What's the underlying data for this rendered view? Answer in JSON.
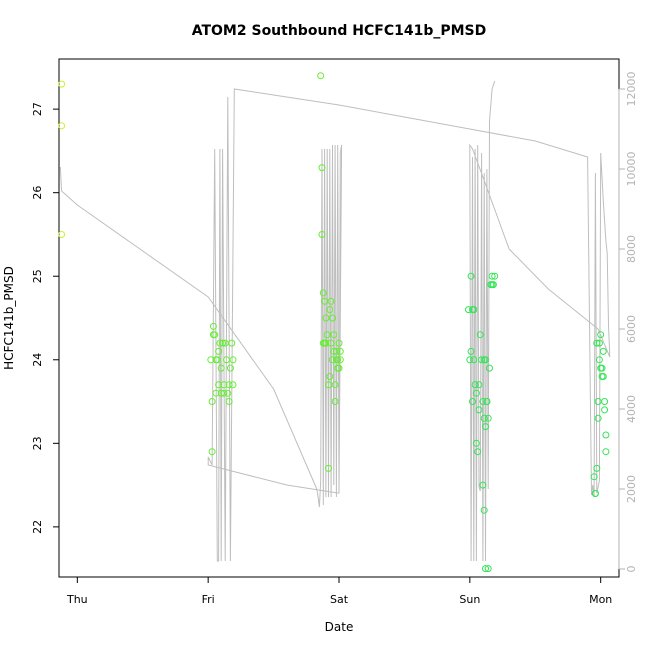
{
  "chart_data": {
    "type": "scatter",
    "title": "ATOM2 Southbound HCFC141b_PMSD",
    "xlabel": "Date",
    "ylabel": "HCFC141b_PMSD",
    "x_ticks": [
      "Thu",
      "Fri",
      "Sat",
      "Sun",
      "Mon"
    ],
    "x_tick_positions": [
      0,
      1,
      2,
      3,
      4
    ],
    "xlim": [
      -0.14,
      4.14
    ],
    "y_ticks": [
      "22",
      "23",
      "24",
      "25",
      "26",
      "27"
    ],
    "y_tick_values": [
      22,
      23,
      24,
      25,
      26,
      27
    ],
    "ylim": [
      21.4,
      27.6
    ],
    "y2_ticks": [
      "0",
      "2000",
      "4000",
      "6000",
      "8000",
      "10000",
      "12000"
    ],
    "y2_tick_values": [
      0,
      2000,
      4000,
      6000,
      8000,
      10000,
      12000
    ],
    "y2lim": [
      -200,
      12750
    ],
    "grid": false,
    "colors": {
      "axis": "#000000",
      "secondary": "#b3b3b3",
      "early_points": "#c7f03c",
      "points": "#66ee33",
      "late_points": "#33e555",
      "line": "#bebebe"
    },
    "series": [
      {
        "kind": "points",
        "x": [
          -0.12,
          -0.12,
          -0.12,
          1.02,
          1.03,
          1.03,
          1.04,
          1.04,
          1.05,
          1.06,
          1.06,
          1.07,
          1.08,
          1.08,
          1.09,
          1.1,
          1.1,
          1.11,
          1.12,
          1.12,
          1.13,
          1.14,
          1.15,
          1.16,
          1.16,
          1.17,
          1.18,
          1.19,
          1.19
        ],
        "y": [
          27.3,
          26.8,
          25.5,
          24.0,
          23.5,
          22.9,
          24.3,
          24.4,
          24.3,
          24.0,
          23.6,
          24.0,
          24.1,
          23.7,
          24.2,
          23.9,
          23.6,
          24.2,
          23.7,
          23.6,
          24.2,
          24.0,
          23.6,
          23.7,
          23.5,
          23.9,
          24.2,
          24.0,
          23.7
        ]
      },
      {
        "kind": "points",
        "x": [
          1.86,
          1.87,
          1.87,
          1.88,
          1.88,
          1.89,
          1.89,
          1.9,
          1.9,
          1.91,
          1.92,
          1.92,
          1.93,
          1.93,
          1.94,
          1.94,
          1.95,
          1.95,
          1.96,
          1.96,
          1.97,
          1.97,
          1.98,
          1.98,
          1.99,
          1.99,
          2.0,
          2.0,
          2.01,
          2.01
        ],
        "y": [
          27.4,
          26.3,
          25.5,
          24.2,
          24.8,
          24.7,
          24.2,
          24.5,
          24.2,
          24.3,
          23.7,
          22.7,
          23.8,
          24.6,
          24.7,
          24.2,
          24.5,
          24.0,
          24.3,
          24.1,
          23.5,
          23.7,
          24.1,
          24.0,
          24.0,
          23.9,
          24.2,
          23.9,
          24.0,
          24.1
        ]
      },
      {
        "kind": "points",
        "x": [
          2.99,
          3.0,
          3.01,
          3.01,
          3.02,
          3.02,
          3.03,
          3.03,
          3.04,
          3.05,
          3.05,
          3.06,
          3.07,
          3.07,
          3.08,
          3.09,
          3.1,
          3.11,
          3.11,
          3.12,
          3.12,
          3.13,
          3.14,
          3.15,
          3.16,
          3.17,
          3.17,
          3.18,
          3.19
        ],
        "y": [
          24.6,
          24.0,
          24.1,
          25.0,
          24.6,
          23.5,
          24.6,
          24.0,
          23.7,
          23.6,
          23.0,
          22.9,
          23.7,
          23.4,
          24.3,
          24.0,
          23.5,
          24.0,
          23.3,
          23.2,
          21.5,
          23.5,
          21.5,
          23.9,
          24.9,
          24.9,
          25.0,
          24.9,
          25.0
        ]
      },
      {
        "kind": "points",
        "x": [
          3.1,
          3.11,
          3.12,
          3.13,
          3.14,
          3.95,
          3.96,
          3.96,
          3.97,
          3.97,
          3.98,
          3.98,
          3.99,
          3.99,
          4.0,
          4.0,
          4.01,
          4.01,
          4.02,
          4.02,
          4.03,
          4.03,
          4.04,
          4.04
        ],
        "y": [
          22.5,
          22.2,
          24.0,
          23.5,
          23.3,
          22.6,
          22.4,
          22.4,
          22.7,
          24.2,
          23.5,
          23.3,
          24.0,
          24.2,
          24.3,
          23.9,
          23.8,
          23.9,
          24.1,
          23.8,
          23.4,
          23.5,
          23.1,
          22.9
        ]
      },
      {
        "kind": "line",
        "axis": "y2",
        "x": [
          -0.13,
          -0.12,
          0.0,
          1.0,
          1.5,
          1.83,
          1.84,
          1.85,
          1.86,
          1.87,
          1.88,
          1.89,
          1.9,
          1.91,
          1.92,
          1.93,
          1.94,
          1.95,
          1.96,
          1.97,
          1.98,
          1.99,
          2.0,
          2.01,
          2.02,
          2.0,
          1.99,
          1.6,
          1.0,
          1.0,
          1.03,
          1.05,
          1.07,
          1.08,
          1.09,
          1.1,
          1.11,
          1.13,
          1.15,
          1.17,
          1.2,
          1.6,
          2.0,
          2.5,
          3.0,
          3.5,
          3.9,
          3.93,
          3.94,
          3.95,
          3.96,
          3.97,
          3.98,
          3.99,
          4.0,
          4.01,
          4.02,
          4.03,
          4.04,
          4.05,
          4.06,
          4.07,
          3.98,
          3.6,
          3.3,
          3.1,
          3.02,
          3.0,
          3.0,
          3.01,
          3.02,
          3.03,
          3.04,
          3.05,
          3.06,
          3.07,
          3.08,
          3.09,
          3.1,
          3.11,
          3.12,
          3.13,
          3.14,
          3.15,
          3.16,
          3.17,
          3.18,
          3.19
        ],
        "y": [
          10050,
          9450,
          9100,
          6800,
          4500,
          2000,
          1800,
          1550,
          2200,
          10500,
          1600,
          10500,
          1800,
          10500,
          1800,
          10500,
          1800,
          10600,
          2100,
          10600,
          1800,
          10600,
          1900,
          10400,
          10600,
          1900,
          1900,
          2100,
          2600,
          2800,
          2600,
          10500,
          200,
          200,
          10500,
          200,
          10500,
          200,
          11800,
          200,
          12000,
          11800,
          11600,
          11300,
          11000,
          10700,
          10300,
          1850,
          2100,
          1800,
          9900,
          1900,
          2050,
          2200,
          10400,
          9800,
          9200,
          8700,
          8200,
          7900,
          6100,
          5300,
          6000,
          7000,
          8000,
          9800,
          10500,
          10600,
          10500,
          200,
          10300,
          200,
          10500,
          200,
          10600,
          2050,
          1950,
          10400,
          200,
          9900,
          200,
          10000,
          2000,
          11200,
          11600,
          12000,
          12100,
          12200
        ]
      }
    ]
  }
}
